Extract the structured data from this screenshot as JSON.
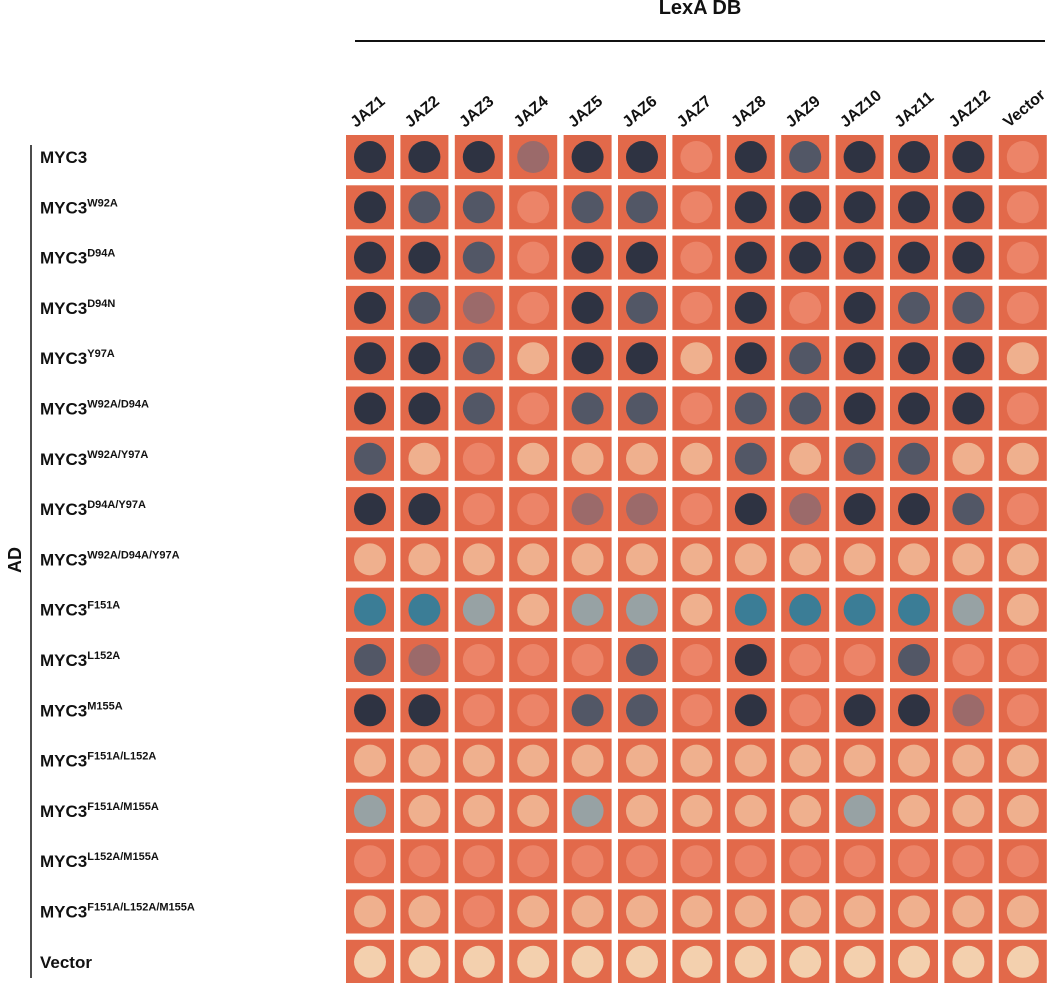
{
  "title": "LexA DB",
  "side_label": "AD",
  "cell_color": "#e2694a",
  "columns": [
    "JAZ1",
    "JAZ2",
    "JAZ3",
    "JAZ4",
    "JAZ5",
    "JAZ6",
    "JAZ7",
    "JAZ8",
    "JAZ9",
    "JAZ10",
    "JAz11",
    "JAZ12",
    "Vector"
  ],
  "rows": [
    {
      "name": "MYC3",
      "spots": [
        "#2e3342",
        "#2e3342",
        "#2e3342",
        "#9b6a6a",
        "#2e3342",
        "#2e3342",
        "#ec8468",
        "#2e3342",
        "#525766",
        "#2e3342",
        "#2e3342",
        "#2e3342",
        "#ec8468"
      ]
    },
    {
      "name": "MYC3",
      "sup": "W92A",
      "spots": [
        "#2e3342",
        "#525766",
        "#525766",
        "#ec8468",
        "#525766",
        "#525766",
        "#ec8468",
        "#2e3342",
        "#2e3342",
        "#2e3342",
        "#2e3342",
        "#2e3342",
        "#ec8468"
      ]
    },
    {
      "name": "MYC3",
      "sup": "D94A",
      "spots": [
        "#2e3342",
        "#2e3342",
        "#525766",
        "#ec8468",
        "#2e3342",
        "#2e3342",
        "#ec8468",
        "#2e3342",
        "#2e3342",
        "#2e3342",
        "#2e3342",
        "#2e3342",
        "#ec8468"
      ]
    },
    {
      "name": "MYC3",
      "sup": "D94N",
      "spots": [
        "#2e3342",
        "#525766",
        "#9b6a6a",
        "#ec8468",
        "#2e3342",
        "#525766",
        "#ec8468",
        "#2e3342",
        "#ec8468",
        "#2e3342",
        "#525766",
        "#525766",
        "#ec8468"
      ]
    },
    {
      "name": "MYC3",
      "sup": "Y97A",
      "spots": [
        "#2e3342",
        "#2e3342",
        "#525766",
        "#efb08e",
        "#2e3342",
        "#2e3342",
        "#efb08e",
        "#2e3342",
        "#525766",
        "#2e3342",
        "#2e3342",
        "#2e3342",
        "#efb08e"
      ]
    },
    {
      "name": "MYC3",
      "sup": "W92A/D94A",
      "spots": [
        "#2e3342",
        "#2e3342",
        "#525766",
        "#ec8468",
        "#525766",
        "#525766",
        "#ec8468",
        "#525766",
        "#525766",
        "#2e3342",
        "#2e3342",
        "#2e3342",
        "#ec8468"
      ]
    },
    {
      "name": "MYC3",
      "sup": "W92A/Y97A",
      "spots": [
        "#525766",
        "#efb08e",
        "#ec8468",
        "#efb08e",
        "#efb08e",
        "#efb08e",
        "#efb08e",
        "#525766",
        "#efb08e",
        "#525766",
        "#525766",
        "#efb08e",
        "#efb08e"
      ]
    },
    {
      "name": "MYC3",
      "sup": "D94A/Y97A",
      "spots": [
        "#2e3342",
        "#2e3342",
        "#ec8468",
        "#ec8468",
        "#9b6a6a",
        "#9b6a6a",
        "#ec8468",
        "#2e3342",
        "#9b6a6a",
        "#2e3342",
        "#2e3342",
        "#525766",
        "#ec8468"
      ]
    },
    {
      "name": "MYC3",
      "sup": "W92A/D94A/Y97A",
      "spots": [
        "#efb08e",
        "#efb08e",
        "#efb08e",
        "#efb08e",
        "#efb08e",
        "#efb08e",
        "#efb08e",
        "#efb08e",
        "#efb08e",
        "#efb08e",
        "#efb08e",
        "#efb08e",
        "#efb08e"
      ]
    },
    {
      "name": "MYC3",
      "sup": "F151A",
      "spots": [
        "#3b7d96",
        "#3b7d96",
        "#97a2a4",
        "#efb08e",
        "#97a2a4",
        "#97a2a4",
        "#efb08e",
        "#3b7d96",
        "#3b7d96",
        "#3b7d96",
        "#3b7d96",
        "#97a2a4",
        "#efb08e"
      ]
    },
    {
      "name": "MYC3",
      "sup": "L152A",
      "spots": [
        "#525766",
        "#9b6a6a",
        "#ec8468",
        "#ec8468",
        "#ec8468",
        "#525766",
        "#ec8468",
        "#2e3342",
        "#ec8468",
        "#ec8468",
        "#525766",
        "#ec8468",
        "#ec8468"
      ]
    },
    {
      "name": "MYC3",
      "sup": "M155A",
      "spots": [
        "#2e3342",
        "#2e3342",
        "#ec8468",
        "#ec8468",
        "#525766",
        "#525766",
        "#ec8468",
        "#2e3342",
        "#ec8468",
        "#2e3342",
        "#2e3342",
        "#9b6a6a",
        "#ec8468"
      ]
    },
    {
      "name": "MYC3",
      "sup": "F151A/L152A",
      "spots": [
        "#efb08e",
        "#efb08e",
        "#efb08e",
        "#efb08e",
        "#efb08e",
        "#efb08e",
        "#efb08e",
        "#efb08e",
        "#efb08e",
        "#efb08e",
        "#efb08e",
        "#efb08e",
        "#efb08e"
      ]
    },
    {
      "name": "MYC3",
      "sup": "F151A/M155A",
      "spots": [
        "#97a2a4",
        "#efb08e",
        "#efb08e",
        "#efb08e",
        "#97a2a4",
        "#efb08e",
        "#efb08e",
        "#efb08e",
        "#efb08e",
        "#97a2a4",
        "#efb08e",
        "#efb08e",
        "#efb08e"
      ]
    },
    {
      "name": "MYC3",
      "sup": "L152A/M155A",
      "spots": [
        "#ec8468",
        "#ec8468",
        "#ec8468",
        "#ec8468",
        "#ec8468",
        "#ec8468",
        "#ec8468",
        "#ec8468",
        "#ec8468",
        "#ec8468",
        "#ec8468",
        "#ec8468",
        "#ec8468"
      ]
    },
    {
      "name": "MYC3",
      "sup": "F151A/L152A/M155A",
      "spots": [
        "#efb08e",
        "#efb08e",
        "#ec8468",
        "#efb08e",
        "#efb08e",
        "#efb08e",
        "#efb08e",
        "#efb08e",
        "#efb08e",
        "#efb08e",
        "#efb08e",
        "#efb08e",
        "#efb08e"
      ]
    },
    {
      "name": "Vector",
      "spots": [
        "#f3d0ae",
        "#f3d0ae",
        "#f3d0ae",
        "#f3d0ae",
        "#f3d0ae",
        "#f3d0ae",
        "#f3d0ae",
        "#f3d0ae",
        "#f3d0ae",
        "#f3d0ae",
        "#f3d0ae",
        "#f3d0ae",
        "#f3d0ae"
      ]
    }
  ]
}
